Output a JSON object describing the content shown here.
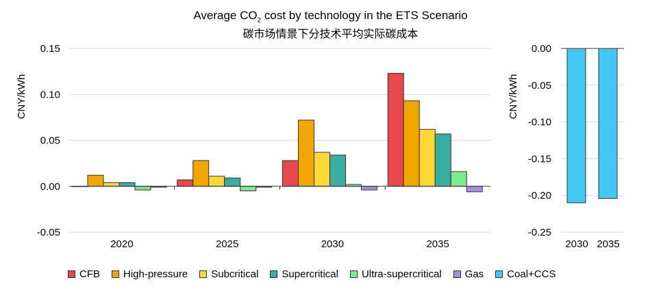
{
  "title": {
    "prefix": "Average CO",
    "subscript": "2",
    "suffix": " cost by technology in the ETS Scenario",
    "chinese": "碳市场情景下分技术平均实际碳成本"
  },
  "chart_data": [
    {
      "type": "bar",
      "title": "Average CO2 cost by technology in the ETS Scenario",
      "ylabel": "CNY/kWh",
      "xlabel": "",
      "ylim": [
        -0.05,
        0.15
      ],
      "yticks": [
        "-0.05",
        "0.00",
        "0.05",
        "0.10",
        "0.15"
      ],
      "ytick_values": [
        -0.05,
        0,
        0.05,
        0.1,
        0.15
      ],
      "grid": true,
      "categories": [
        "2020",
        "2025",
        "2030",
        "2035"
      ],
      "series": [
        {
          "name": "CFB",
          "color": "#e8474c",
          "values": [
            0,
            0.007,
            0.028,
            0.123
          ]
        },
        {
          "name": "High-pressure",
          "color": "#f0a800",
          "values": [
            0.012,
            0.028,
            0.072,
            0.093
          ]
        },
        {
          "name": "Subcritical",
          "color": "#fdd835",
          "values": [
            0.004,
            0.011,
            0.037,
            0.062
          ]
        },
        {
          "name": "Supercritical",
          "color": "#38ada0",
          "values": [
            0.004,
            0.009,
            0.034,
            0.057
          ]
        },
        {
          "name": "Ultra-supercritical",
          "color": "#7cea8e",
          "values": [
            -0.004,
            -0.005,
            0.002,
            0.016
          ]
        },
        {
          "name": "Gas",
          "color": "#a98ee6",
          "values": [
            -0.001,
            -0.001,
            -0.004,
            -0.006
          ]
        }
      ]
    },
    {
      "type": "bar",
      "ylabel": "CNY/kWh",
      "ylim": [
        -0.25,
        0
      ],
      "yticks": [
        "-0.25",
        "-0.20",
        "-0.15",
        "-0.10",
        "-0.05",
        "0.00"
      ],
      "ytick_values": [
        -0.25,
        -0.2,
        -0.15,
        -0.1,
        -0.05,
        0
      ],
      "grid": true,
      "categories": [
        "2030",
        "2035"
      ],
      "series": [
        {
          "name": "Coal+CCS",
          "color": "#40c8f0",
          "values": [
            -0.21,
            -0.204
          ]
        }
      ]
    }
  ],
  "legend": [
    {
      "label": "CFB",
      "color": "#e8474c"
    },
    {
      "label": "High-pressure",
      "color": "#f0a800"
    },
    {
      "label": "Subcritical",
      "color": "#fdd835"
    },
    {
      "label": "Supercritical",
      "color": "#38ada0"
    },
    {
      "label": "Ultra-supercritical",
      "color": "#7cea8e"
    },
    {
      "label": "Gas",
      "color": "#a98ee6"
    },
    {
      "label": "Coal+CCS",
      "color": "#40c8f0"
    }
  ]
}
